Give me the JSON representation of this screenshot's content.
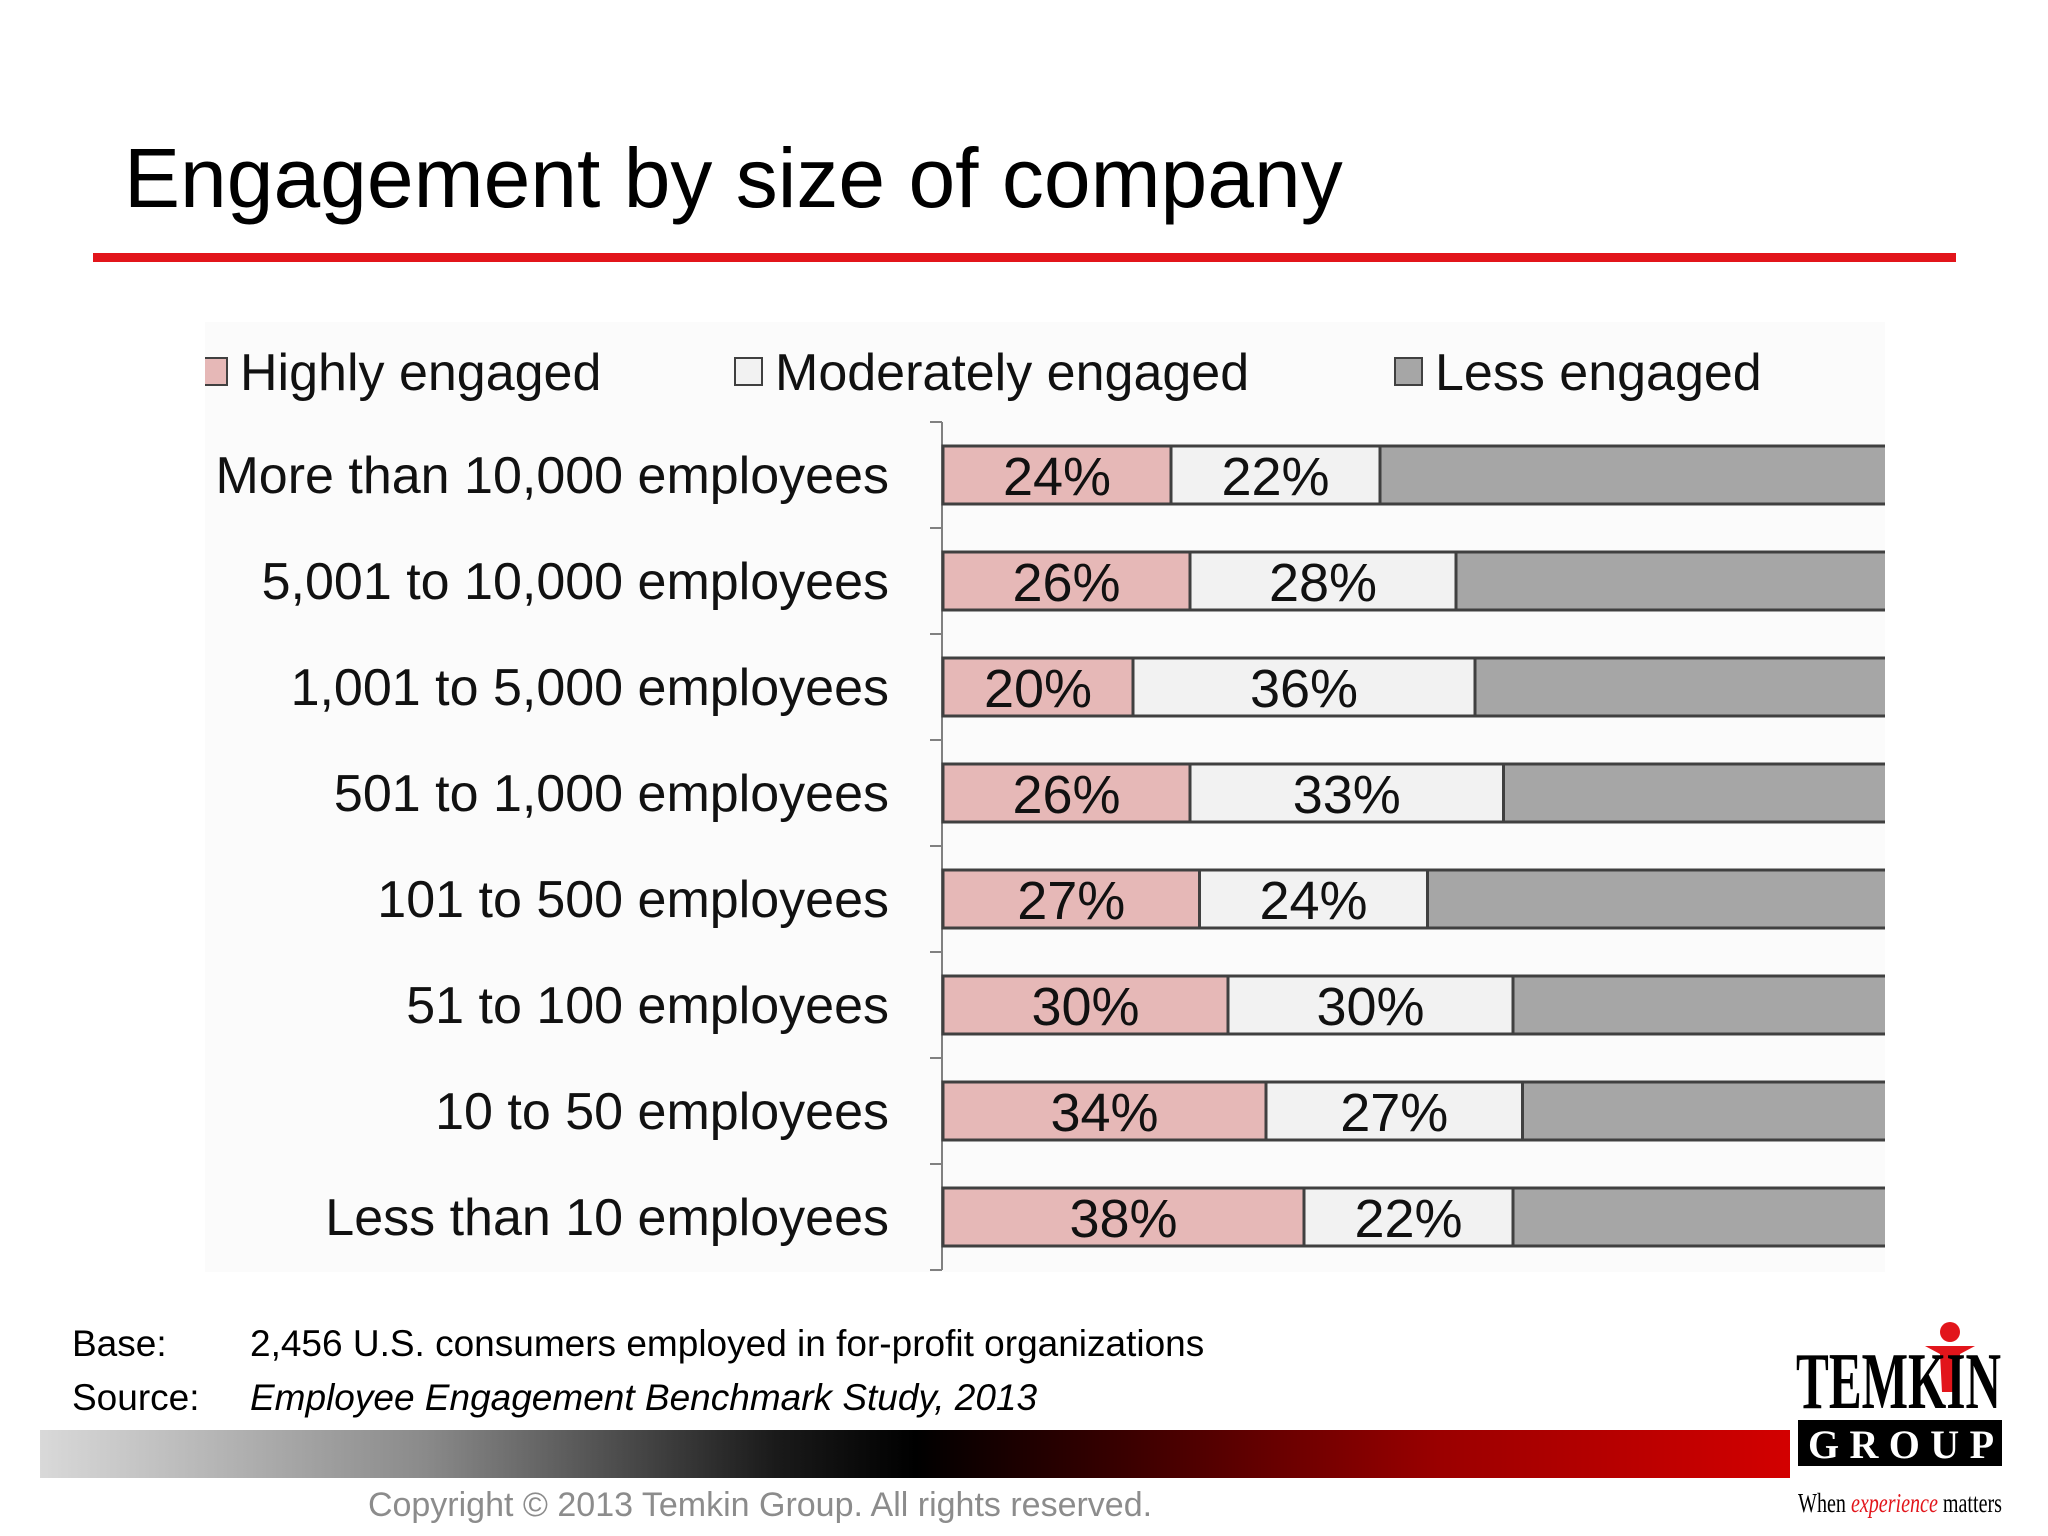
{
  "title": "Engagement by size of company",
  "footnote": {
    "base_label": "Base:",
    "base_text": "2,456 U.S. consumers employed in for-profit organizations",
    "source_label": "Source:",
    "source_text": "Employee Engagement Benchmark Study, 2013"
  },
  "copyright": "Copyright © 2013 Temkin Group. All rights reserved.",
  "logo": {
    "word1": "TEMKIN",
    "word2": "GROUP",
    "tagline_a": "When ",
    "tagline_b": "experience",
    "tagline_c": " matters"
  },
  "colors": {
    "accent_red": "#e2151b",
    "highly": "#e6b8b7",
    "moderately": "#f2f2f2",
    "less": "#a6a6a6"
  },
  "chart_data": {
    "type": "bar",
    "orientation": "horizontal",
    "stacked": true,
    "categories": [
      "More than 10,000 employees",
      "5,001 to 10,000 employees",
      "1,001 to 5,000 employees",
      "501 to 1,000 employees",
      "101 to 500 employees",
      "51 to 100 employees",
      "10 to 50 employees",
      "Less than 10 employees"
    ],
    "series": [
      {
        "name": "Highly engaged",
        "values": [
          24,
          26,
          20,
          26,
          27,
          30,
          34,
          38
        ],
        "labels": [
          "24%",
          "26%",
          "20%",
          "26%",
          "27%",
          "30%",
          "34%",
          "38%"
        ],
        "color": "#e6b8b7"
      },
      {
        "name": "Moderately engaged",
        "values": [
          22,
          28,
          36,
          33,
          24,
          30,
          27,
          22
        ],
        "labels": [
          "22%",
          "28%",
          "36%",
          "33%",
          "24%",
          "30%",
          "27%",
          "22%"
        ],
        "color": "#f2f2f2"
      },
      {
        "name": "Less engaged",
        "values": [
          54,
          46,
          44,
          41,
          49,
          40,
          39,
          40
        ],
        "color": "#a6a6a6"
      }
    ],
    "xlim": [
      0,
      100
    ],
    "legend_position": "top",
    "grid": false
  }
}
